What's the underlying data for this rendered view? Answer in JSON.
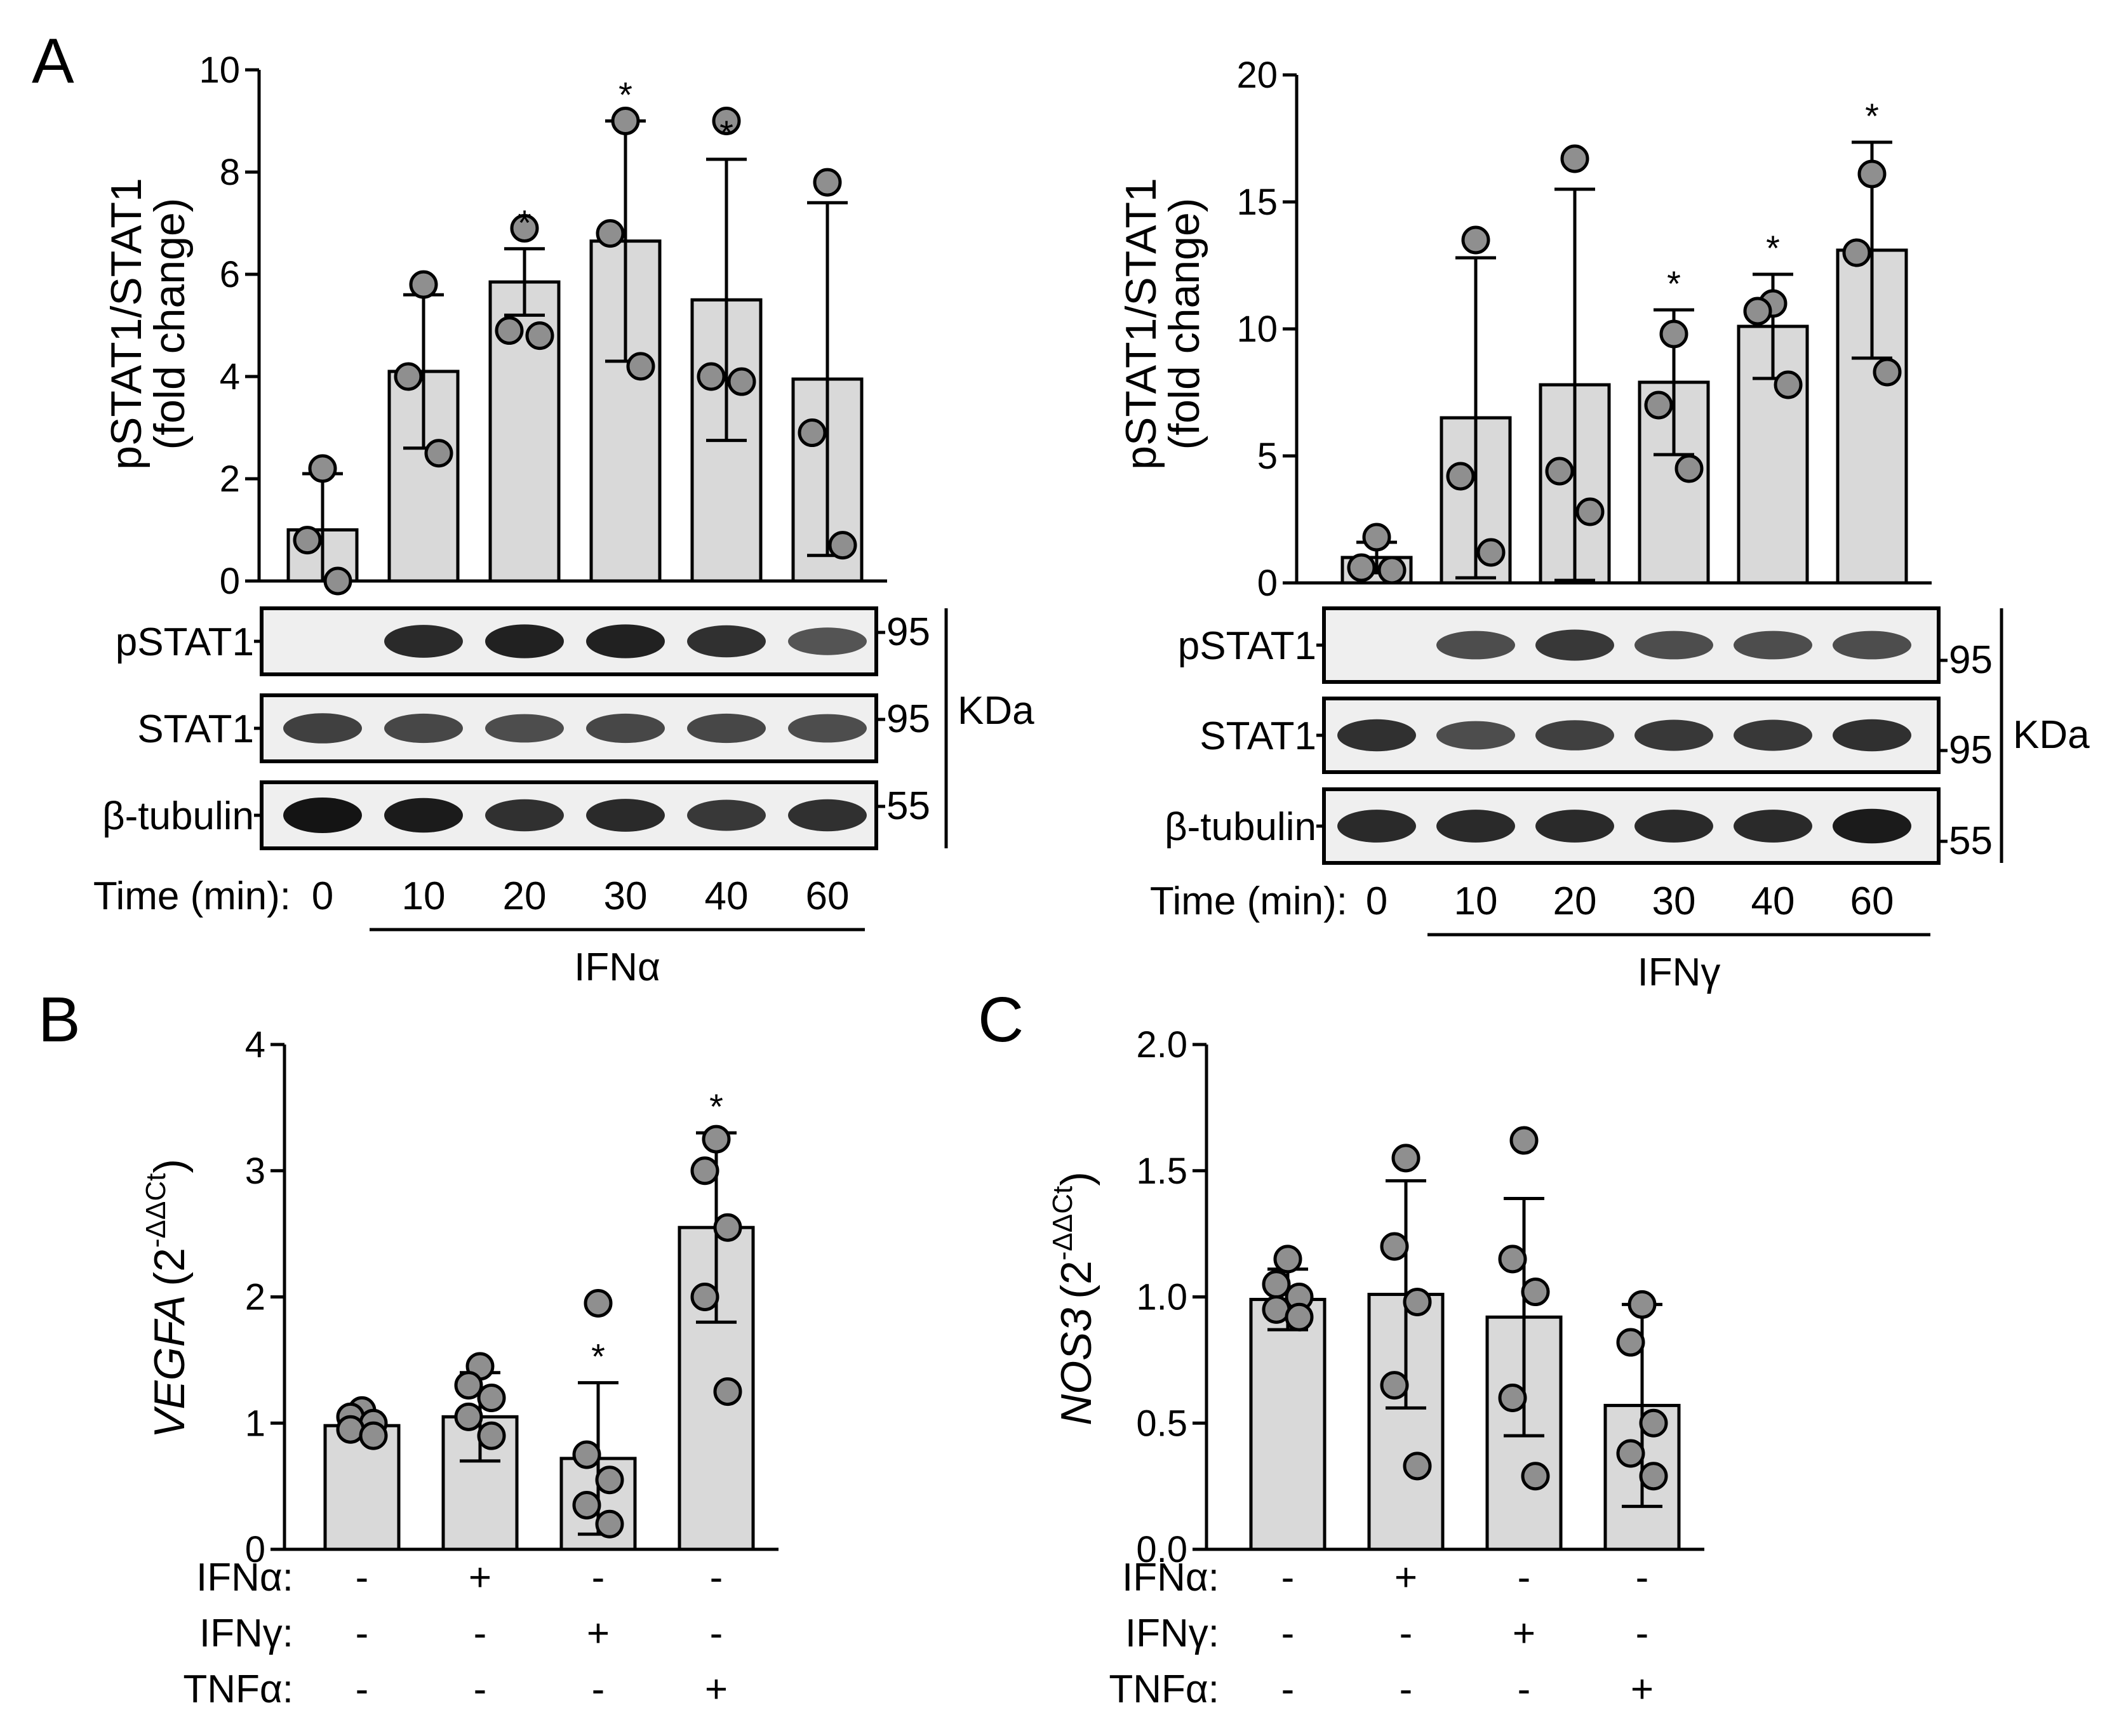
{
  "panels": {
    "A_left": {
      "letter": "A",
      "chart_data": {
        "type": "bar",
        "ylabel_line1": "pSTAT1/STAT1",
        "ylabel_line2": "(fold change)",
        "ylim": [
          0,
          10
        ],
        "yticks": [
          "0",
          "2",
          "4",
          "6",
          "8",
          "10"
        ],
        "ytick_values": [
          0,
          2,
          4,
          6,
          8,
          10
        ],
        "categories": [
          "0",
          "10",
          "20",
          "30",
          "40",
          "60"
        ],
        "values": [
          1.0,
          4.1,
          5.85,
          6.65,
          5.5,
          3.95
        ],
        "errors": [
          1.1,
          1.5,
          0.65,
          2.35,
          2.75,
          3.45
        ],
        "points": [
          [
            2.2,
            0.8,
            0.0
          ],
          [
            5.8,
            4.0,
            2.5
          ],
          [
            6.9,
            4.9,
            4.8
          ],
          [
            9.0,
            6.8,
            4.2
          ],
          [
            9.0,
            4.0,
            3.9
          ],
          [
            7.8,
            2.9,
            0.7
          ]
        ],
        "significance": [
          "",
          "",
          "*",
          "*",
          "*",
          ""
        ]
      },
      "blots": {
        "rows": [
          "pSTAT1",
          "STAT1",
          "β-tubulin"
        ],
        "kda": [
          "95",
          "95",
          "55"
        ],
        "kda_unit": "KDa",
        "intensity": [
          [
            0.0,
            0.85,
            0.9,
            0.9,
            0.8,
            0.55
          ],
          [
            0.7,
            0.65,
            0.6,
            0.65,
            0.65,
            0.6
          ],
          [
            1.0,
            0.95,
            0.8,
            0.85,
            0.75,
            0.8
          ]
        ]
      },
      "time_label": "Time (min):",
      "times": [
        "0",
        "10",
        "20",
        "30",
        "40",
        "60"
      ],
      "treatment": "IFNα"
    },
    "A_right": {
      "chart_data": {
        "type": "bar",
        "ylabel_line1": "pSTAT1/STAT1",
        "ylabel_line2": "(fold change)",
        "ylim": [
          0,
          20
        ],
        "yticks": [
          "0",
          "5",
          "10",
          "15",
          "20"
        ],
        "ytick_values": [
          0,
          5,
          10,
          15,
          20
        ],
        "categories": [
          "0",
          "10",
          "20",
          "30",
          "40",
          "60"
        ],
        "values": [
          1.0,
          6.5,
          7.8,
          7.9,
          10.1,
          13.1
        ],
        "errors": [
          0.6,
          6.3,
          7.7,
          2.85,
          2.05,
          4.25
        ],
        "points": [
          [
            1.8,
            0.6,
            0.5
          ],
          [
            13.5,
            4.2,
            1.2
          ],
          [
            16.7,
            4.4,
            2.8
          ],
          [
            9.8,
            7.0,
            4.5
          ],
          [
            11.0,
            10.7,
            7.8
          ],
          [
            16.1,
            13.0,
            8.3
          ]
        ],
        "significance": [
          "",
          "",
          "",
          "*",
          "*",
          "*"
        ]
      },
      "blots": {
        "rows": [
          "pSTAT1",
          "STAT1",
          "β-tubulin"
        ],
        "kda": [
          "95",
          "95",
          "55"
        ],
        "kda_unit": "KDa",
        "intensity": [
          [
            0.0,
            0.6,
            0.75,
            0.6,
            0.6,
            0.6
          ],
          [
            0.8,
            0.6,
            0.7,
            0.75,
            0.75,
            0.8
          ],
          [
            0.85,
            0.85,
            0.85,
            0.85,
            0.85,
            0.95
          ]
        ]
      },
      "time_label": "Time (min):",
      "times": [
        "0",
        "10",
        "20",
        "30",
        "40",
        "60"
      ],
      "treatment": "IFNγ"
    },
    "B": {
      "letter": "B",
      "chart_data": {
        "type": "bar",
        "ylabel_gene": "VEGFA",
        "ylabel_expr": "(2",
        "ylabel_sup": "-ΔΔCt",
        "ylabel_close": ")",
        "ylim": [
          0,
          4
        ],
        "yticks": [
          "0",
          "1",
          "2",
          "3",
          "4"
        ],
        "ytick_values": [
          0,
          1,
          2,
          3,
          4
        ],
        "values": [
          0.98,
          1.05,
          0.72,
          2.55
        ],
        "errors": [
          0.1,
          0.35,
          0.6,
          0.75
        ],
        "points": [
          [
            1.1,
            1.05,
            1.0,
            0.95,
            0.9
          ],
          [
            1.45,
            1.3,
            1.2,
            1.05,
            0.9
          ],
          [
            1.95,
            0.75,
            0.55,
            0.35,
            0.2
          ],
          [
            3.25,
            3.0,
            2.55,
            2.0,
            1.25
          ]
        ],
        "significance": [
          "",
          "",
          "*",
          "*"
        ]
      },
      "conditions": [
        {
          "label": "IFNα:",
          "signs": [
            "-",
            "+",
            "-",
            "-"
          ]
        },
        {
          "label": "IFNγ:",
          "signs": [
            "-",
            "-",
            "+",
            "-"
          ]
        },
        {
          "label": "TNFα:",
          "signs": [
            "-",
            "-",
            "-",
            "+"
          ]
        }
      ]
    },
    "C": {
      "letter": "C",
      "chart_data": {
        "type": "bar",
        "ylabel_gene": "NOS3",
        "ylabel_expr": "(2",
        "ylabel_sup": "-ΔΔCt",
        "ylabel_close": ")",
        "ylim": [
          0,
          2.0
        ],
        "yticks": [
          "0.0",
          "0.5",
          "1.0",
          "1.5",
          "2.0"
        ],
        "ytick_values": [
          0,
          0.5,
          1.0,
          1.5,
          2.0
        ],
        "values": [
          0.99,
          1.01,
          0.92,
          0.57
        ],
        "errors": [
          0.12,
          0.45,
          0.47,
          0.4
        ],
        "points": [
          [
            1.15,
            1.05,
            1.0,
            0.95,
            0.92
          ],
          [
            1.55,
            1.2,
            0.98,
            0.65,
            0.33
          ],
          [
            1.62,
            1.15,
            1.02,
            0.6,
            0.29
          ],
          [
            0.97,
            0.82,
            0.5,
            0.38,
            0.29
          ]
        ],
        "significance": [
          "",
          "",
          "",
          ""
        ]
      },
      "conditions": [
        {
          "label": "IFNα:",
          "signs": [
            "-",
            "+",
            "-",
            "-"
          ]
        },
        {
          "label": "IFNγ:",
          "signs": [
            "-",
            "-",
            "+",
            "-"
          ]
        },
        {
          "label": "TNFα:",
          "signs": [
            "-",
            "-",
            "-",
            "+"
          ]
        }
      ]
    }
  }
}
